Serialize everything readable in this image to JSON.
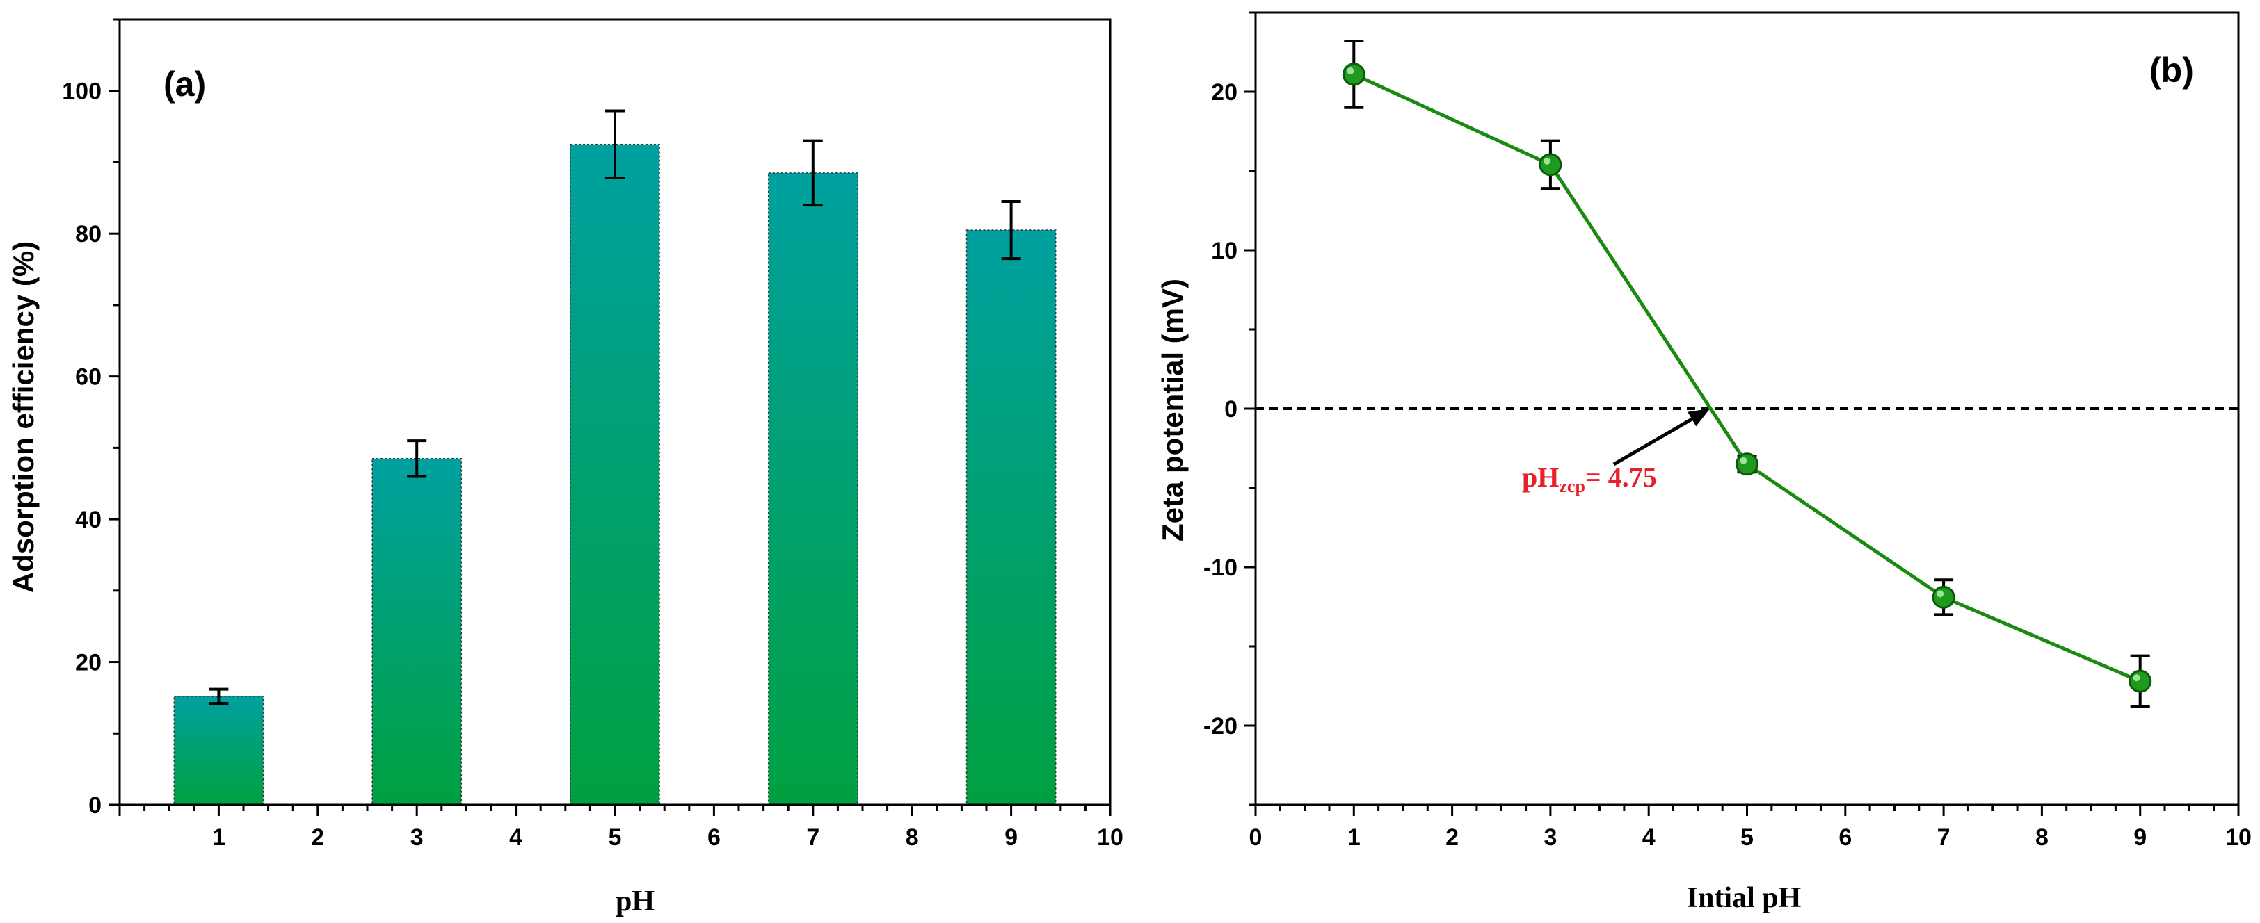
{
  "colors": {
    "bar_top": "#00A0A0",
    "bar_bottom": "#00A040",
    "line": "#1A8A10",
    "marker": "#1E9A1E",
    "annotation": "#E8202A",
    "axis": "#000000"
  },
  "chart_data": [
    {
      "type": "bar",
      "panel_label": "(a)",
      "xlabel": "pH",
      "ylabel": "Adsorption efficiency (%)",
      "categories": [
        1,
        3,
        5,
        7,
        9
      ],
      "values": [
        15.2,
        48.5,
        92.5,
        88.5,
        80.5
      ],
      "errors": [
        1.0,
        2.5,
        4.7,
        4.5,
        4.0
      ],
      "xlim": [
        0,
        10
      ],
      "ylim": [
        0,
        110
      ],
      "xticks": [
        1,
        2,
        3,
        4,
        5,
        6,
        7,
        8,
        9,
        10
      ],
      "yticks": [
        0,
        20,
        40,
        60,
        80,
        100
      ],
      "grid": false
    },
    {
      "type": "line",
      "panel_label": "(b)",
      "xlabel": "Intial pH",
      "ylabel": "Zeta potential (mV)",
      "x": [
        1,
        3,
        5,
        7,
        9
      ],
      "y": [
        21.1,
        15.4,
        -3.5,
        -11.9,
        -17.2
      ],
      "errors": [
        2.1,
        1.5,
        0.5,
        1.1,
        1.6
      ],
      "xlim": [
        0,
        10
      ],
      "ylim": [
        -25,
        25
      ],
      "xticks": [
        0,
        1,
        2,
        3,
        4,
        5,
        6,
        7,
        8,
        9,
        10
      ],
      "yticks": [
        -20,
        -10,
        0,
        10,
        20
      ],
      "reference_line_y": 0,
      "grid": false,
      "annotation": {
        "prefix": "pH",
        "subscript": "zcp",
        "suffix": "= 4.75",
        "pzc_x": 4.75
      }
    }
  ]
}
